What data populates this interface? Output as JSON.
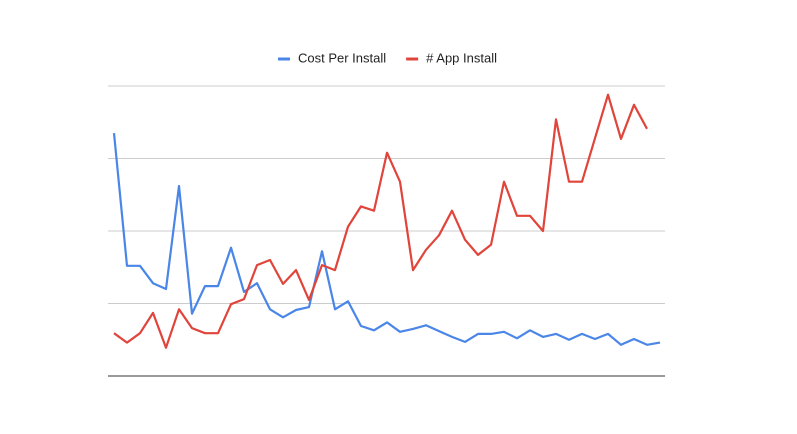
{
  "chart_data": {
    "type": "line",
    "categories": [
      null,
      null,
      null,
      null,
      null,
      null,
      null,
      null,
      null,
      null,
      null,
      null,
      null,
      null,
      null,
      null,
      null,
      null,
      null,
      null,
      null,
      null,
      null,
      null,
      null,
      null,
      null,
      null,
      null,
      null,
      null,
      null,
      null,
      null,
      null,
      null,
      null,
      null,
      null,
      null,
      null,
      null,
      null
    ],
    "series": [
      {
        "name": "Cost Per Install",
        "color": "#4a86e8",
        "values": [
          3.35,
          1.52,
          1.52,
          1.28,
          1.2,
          2.62,
          0.86,
          1.24,
          1.24,
          1.77,
          1.16,
          1.28,
          0.92,
          0.81,
          0.91,
          0.95,
          1.72,
          0.92,
          1.03,
          0.69,
          0.63,
          0.74,
          0.61,
          0.65,
          0.7,
          0.62,
          0.54,
          0.47,
          0.58,
          0.58,
          0.61,
          0.52,
          0.63,
          0.54,
          0.58,
          0.5,
          0.58,
          0.51,
          0.58,
          0.43,
          0.51,
          0.43,
          0.46
        ]
      },
      {
        "name": "# App Install",
        "color": "#e0443a",
        "values": [
          0.59,
          0.46,
          0.59,
          0.87,
          0.39,
          0.92,
          0.66,
          0.59,
          0.59,
          0.99,
          1.06,
          1.53,
          1.6,
          1.27,
          1.46,
          1.05,
          1.53,
          1.46,
          2.06,
          2.34,
          2.28,
          3.08,
          2.68,
          1.46,
          1.74,
          1.94,
          2.28,
          1.88,
          1.67,
          1.81,
          2.68,
          2.21,
          2.21,
          2.0,
          3.54,
          2.68,
          2.68,
          3.28,
          3.88,
          3.27,
          3.74,
          3.41,
          null
        ]
      }
    ],
    "ylim": [
      0,
      4
    ],
    "yticks": [
      0,
      1,
      2,
      3,
      4
    ],
    "grid": true,
    "legend": "top"
  }
}
